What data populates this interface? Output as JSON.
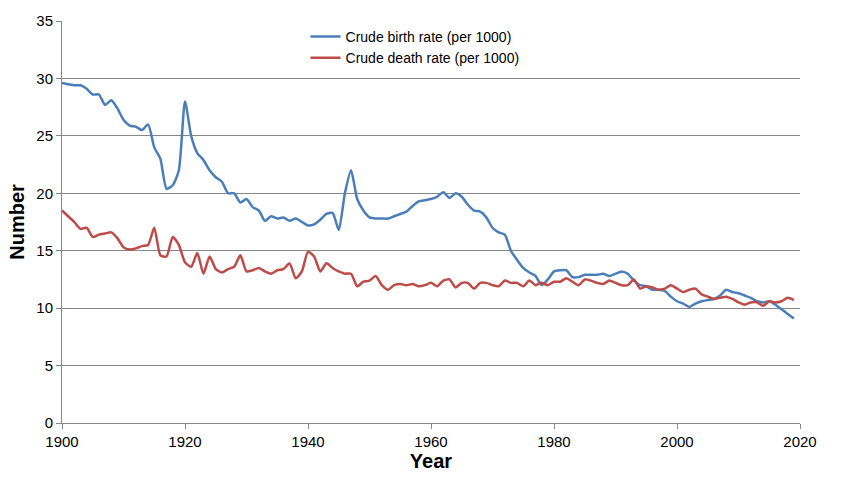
{
  "chart_data": {
    "type": "line",
    "x_label": "Year",
    "y_label": "Number",
    "x": [
      1900,
      1901,
      1902,
      1903,
      1904,
      1905,
      1906,
      1907,
      1908,
      1909,
      1910,
      1911,
      1912,
      1913,
      1914,
      1915,
      1916,
      1917,
      1918,
      1919,
      1920,
      1921,
      1922,
      1923,
      1924,
      1925,
      1926,
      1927,
      1928,
      1929,
      1930,
      1931,
      1932,
      1933,
      1934,
      1935,
      1936,
      1937,
      1938,
      1939,
      1940,
      1941,
      1942,
      1943,
      1944,
      1945,
      1946,
      1947,
      1948,
      1949,
      1950,
      1951,
      1952,
      1953,
      1954,
      1955,
      1956,
      1957,
      1958,
      1959,
      1960,
      1961,
      1962,
      1963,
      1964,
      1965,
      1966,
      1967,
      1968,
      1969,
      1970,
      1971,
      1972,
      1973,
      1974,
      1975,
      1976,
      1977,
      1978,
      1979,
      1980,
      1981,
      1982,
      1983,
      1984,
      1985,
      1986,
      1987,
      1988,
      1989,
      1990,
      1991,
      1992,
      1993,
      1994,
      1995,
      1996,
      1997,
      1998,
      1999,
      2000,
      2001,
      2002,
      2003,
      2004,
      2005,
      2006,
      2007,
      2008,
      2009,
      2010,
      2011,
      2012,
      2013,
      2014,
      2015,
      2016,
      2017,
      2018,
      2019
    ],
    "series": [
      {
        "name": "Crude birth rate (per 1000)",
        "color": "#4a7ebb",
        "values": [
          29.6,
          29.5,
          29.4,
          29.4,
          29.1,
          28.6,
          28.6,
          27.7,
          28.1,
          27.4,
          26.4,
          25.9,
          25.8,
          25.5,
          26.0,
          24.0,
          23.0,
          20.4,
          20.7,
          22.0,
          28.0,
          25.0,
          23.5,
          22.9,
          22.0,
          21.4,
          21.0,
          20.0,
          20.0,
          19.2,
          19.5,
          18.8,
          18.5,
          17.6,
          18.0,
          17.8,
          17.9,
          17.6,
          17.8,
          17.5,
          17.2,
          17.3,
          17.7,
          18.2,
          18.3,
          16.8,
          20.0,
          22.0,
          19.5,
          18.5,
          17.9,
          17.8,
          17.8,
          17.8,
          18.0,
          18.2,
          18.4,
          18.9,
          19.3,
          19.4,
          19.5,
          19.7,
          20.1,
          19.6,
          20.0,
          19.7,
          19.0,
          18.5,
          18.4,
          17.9,
          17.0,
          16.6,
          16.4,
          15.0,
          14.2,
          13.5,
          13.1,
          12.8,
          12.0,
          12.5,
          13.2,
          13.3,
          13.3,
          12.7,
          12.7,
          12.9,
          12.9,
          12.9,
          13.0,
          12.8,
          13.0,
          13.2,
          13.0,
          12.4,
          12.0,
          11.9,
          11.6,
          11.6,
          11.5,
          11.0,
          10.6,
          10.4,
          10.1,
          10.4,
          10.6,
          10.7,
          10.8,
          11.1,
          11.6,
          11.4,
          11.3,
          11.1,
          10.9,
          10.6,
          10.5,
          10.6,
          10.3,
          9.9,
          9.5,
          9.1
        ]
      },
      {
        "name": "Crude death rate (per 1000)",
        "color": "#be4b48",
        "values": [
          18.5,
          18.0,
          17.5,
          16.9,
          17.0,
          16.2,
          16.4,
          16.5,
          16.6,
          16.1,
          15.3,
          15.1,
          15.2,
          15.4,
          15.5,
          17.0,
          14.6,
          14.5,
          16.2,
          15.5,
          14.0,
          13.6,
          14.8,
          13.0,
          14.5,
          13.4,
          13.1,
          13.4,
          13.6,
          14.6,
          13.2,
          13.3,
          13.5,
          13.2,
          13.0,
          13.3,
          13.4,
          13.9,
          12.6,
          13.2,
          14.9,
          14.5,
          13.2,
          13.9,
          13.5,
          13.2,
          13.0,
          13.0,
          11.9,
          12.3,
          12.4,
          12.8,
          12.0,
          11.6,
          12.0,
          12.1,
          12.0,
          12.1,
          11.9,
          12.0,
          12.2,
          11.9,
          12.4,
          12.5,
          11.8,
          12.2,
          12.2,
          11.7,
          12.2,
          12.2,
          12.0,
          11.9,
          12.4,
          12.2,
          12.2,
          11.9,
          12.4,
          12.0,
          12.2,
          12.0,
          12.3,
          12.3,
          12.6,
          12.3,
          12.0,
          12.5,
          12.4,
          12.2,
          12.1,
          12.4,
          12.2,
          12.0,
          12.0,
          12.5,
          11.7,
          11.9,
          11.8,
          11.6,
          11.7,
          12.0,
          11.7,
          11.4,
          11.6,
          11.7,
          11.2,
          11.0,
          10.8,
          10.9,
          11.0,
          10.8,
          10.5,
          10.3,
          10.5,
          10.5,
          10.2,
          10.6,
          10.5,
          10.6,
          10.9,
          10.7
        ]
      }
    ],
    "xlim": [
      1900,
      2020
    ],
    "xticks": [
      1900,
      1920,
      1940,
      1960,
      1980,
      2000,
      2020
    ],
    "ylim": [
      0,
      35
    ],
    "yticks": [
      0,
      5,
      10,
      15,
      20,
      25,
      30,
      35
    ],
    "grid": true,
    "legend": "top"
  }
}
